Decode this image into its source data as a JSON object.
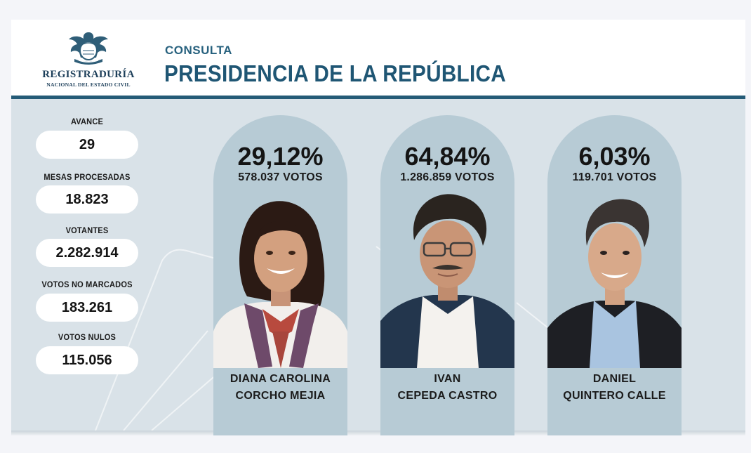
{
  "header": {
    "logo_name": "REGISTRADURÍA",
    "logo_sub": "NACIONAL DEL ESTADO CIVIL",
    "subtitle": "CONSULTA",
    "title": "PRESIDENCIA DE LA REPÚBLICA"
  },
  "stats": {
    "avance_label": "AVANCE",
    "avance_value": "29",
    "mesas_label": "MESAS PROCESADAS",
    "mesas_value": "18.823",
    "votantes_label": "VOTANTES",
    "votantes_value": "2.282.914",
    "no_marcados_label": "VOTOS NO MARCADOS",
    "no_marcados_value": "183.261",
    "nulos_label": "VOTOS NULOS",
    "nulos_value": "115.056"
  },
  "candidates": [
    {
      "percent": "29,12%",
      "votes": "578.037 VOTOS",
      "name_line1": "DIANA CAROLINA",
      "name_line2": "CORCHO MEJIA"
    },
    {
      "percent": "64,84%",
      "votes": "1.286.859 VOTOS",
      "name_line1": "IVAN",
      "name_line2": "CEPEDA CASTRO"
    },
    {
      "percent": "6,03%",
      "votes": "119.701 VOTOS",
      "name_line1": "DANIEL",
      "name_line2": "QUINTERO CALLE"
    }
  ],
  "colors": {
    "brand_dark": "#1f5674",
    "panel_bg": "#d9e2e8",
    "candidate_card": "#b7cbd5"
  }
}
